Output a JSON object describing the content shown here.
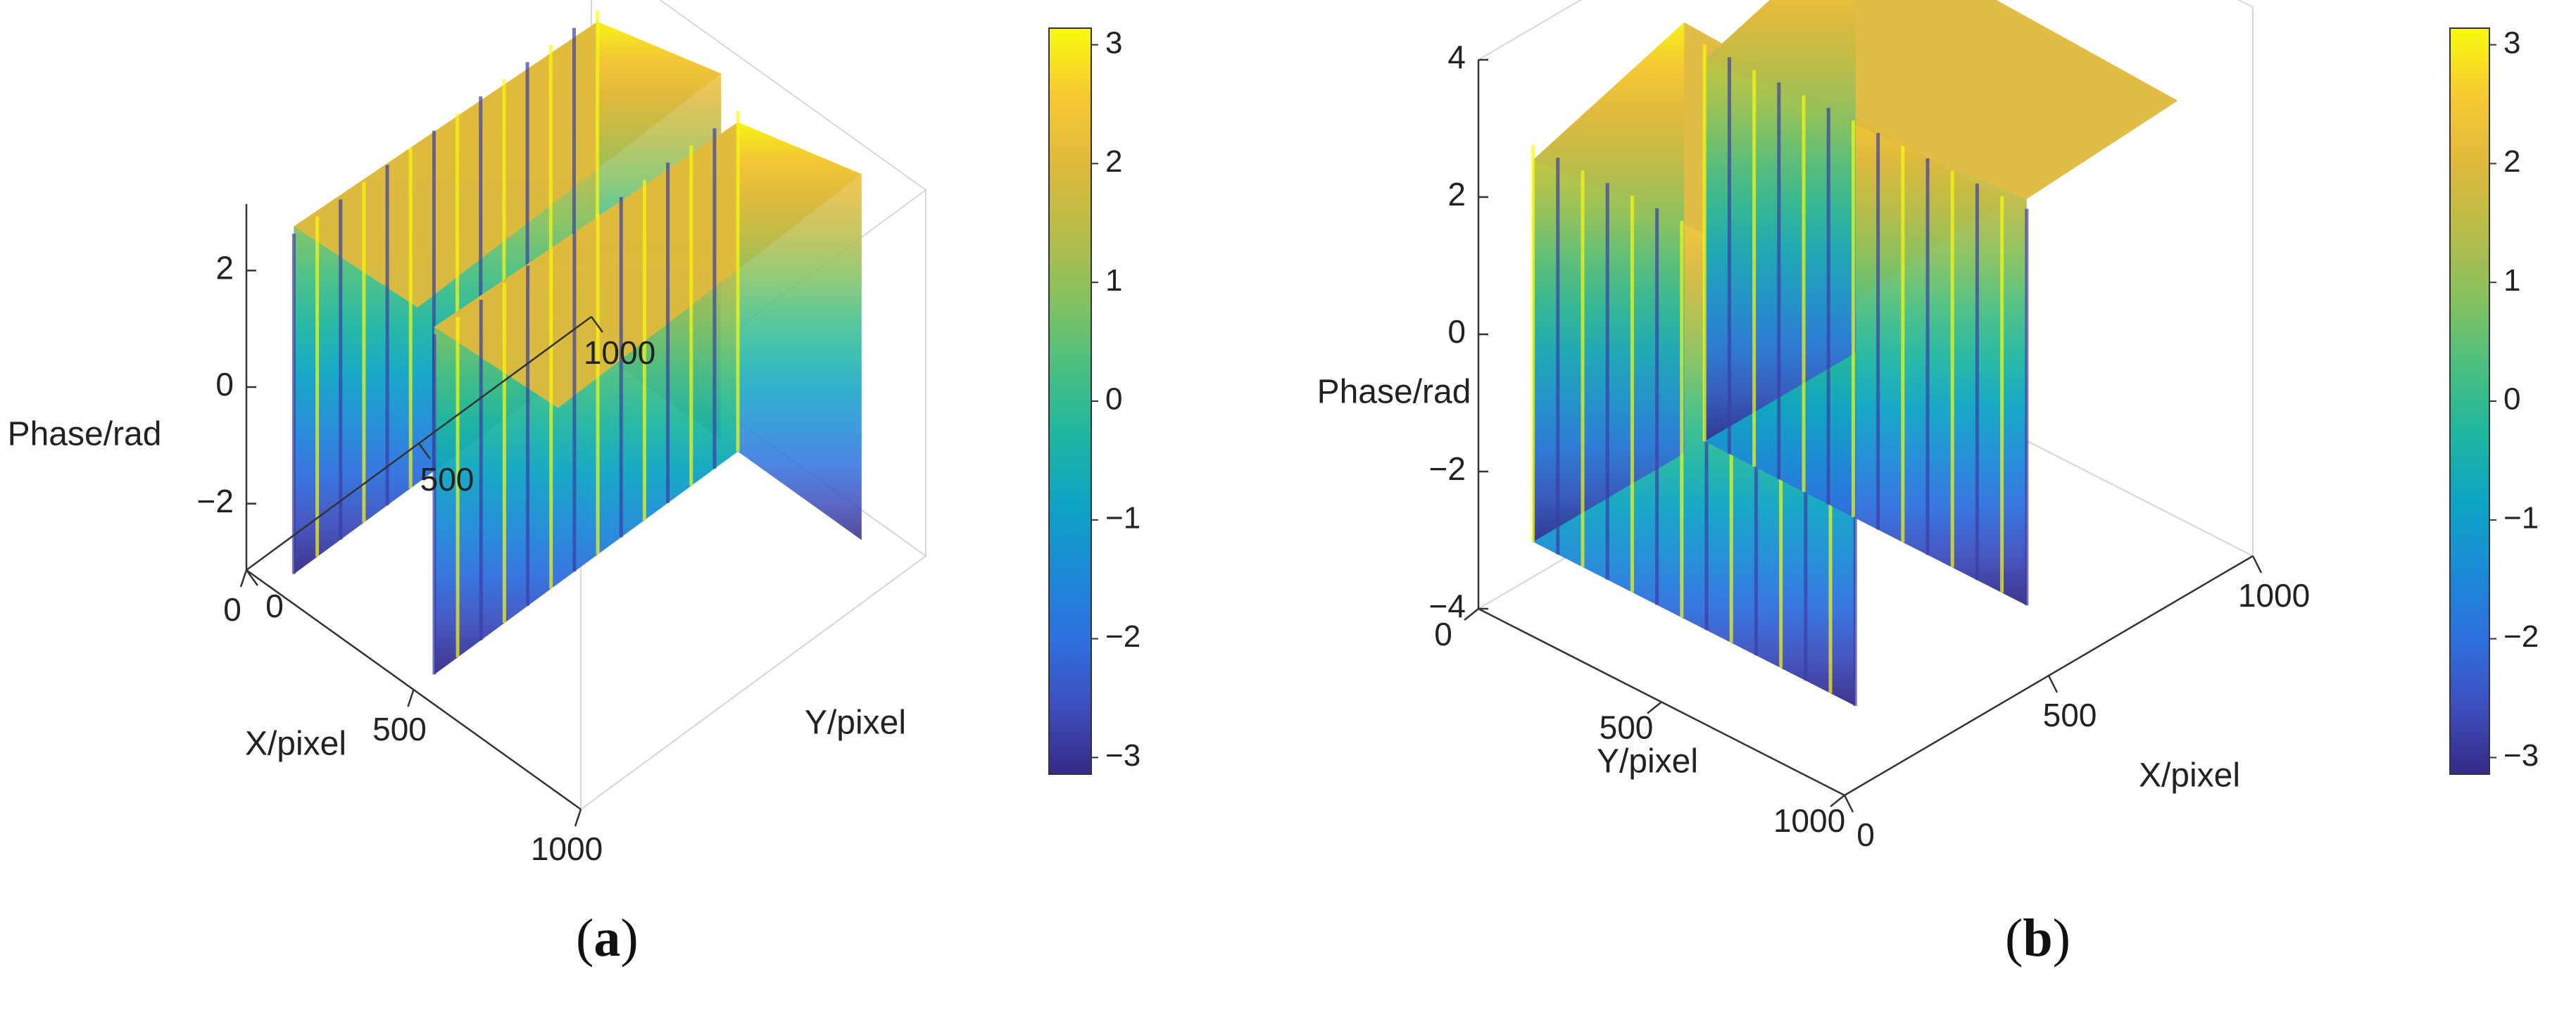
{
  "colors": {
    "parula": [
      "#352a87",
      "#3e4fbe",
      "#2e70df",
      "#1b8bd6",
      "#0da4c4",
      "#1fb6a0",
      "#4abf81",
      "#86c15f",
      "#b8bc49",
      "#dfb93c",
      "#f7c932",
      "#f9fb0e"
    ],
    "axis": "#333333",
    "grid": "#d8d8d8"
  },
  "chart_data": [
    {
      "panel": "a",
      "type": "surface3d",
      "caption_letter": "a",
      "xlabel": "X/pixel",
      "ylabel": "Y/pixel",
      "zlabel": "Phase/rad",
      "x_ticks": [
        "0",
        "500",
        "1000"
      ],
      "y_ticks": [
        "0",
        "500",
        "1000"
      ],
      "z_ticks": [
        "2",
        "0",
        "−2"
      ],
      "xlim": [
        0,
        1000
      ],
      "ylim": [
        0,
        1000
      ],
      "zlim": [
        -3.14,
        3.14
      ],
      "grid": true,
      "colorbar": {
        "ticks": [
          "3",
          "2",
          "1",
          "0",
          "−1",
          "−2",
          "−3"
        ],
        "range": [
          -3.14,
          3.14
        ]
      },
      "surface": {
        "wrapped_phase_bands": 2,
        "z_min": -3.14,
        "z_max": 3.14
      }
    },
    {
      "panel": "b",
      "type": "surface3d",
      "caption_letter": "b",
      "xlabel": "X/pixel",
      "ylabel": "Y/pixel",
      "zlabel": "Phase/rad",
      "x_ticks": [
        "0",
        "500",
        "1000"
      ],
      "y_ticks": [
        "1000",
        "500",
        "0"
      ],
      "z_ticks": [
        "4",
        "2",
        "0",
        "−2",
        "−4"
      ],
      "xlim": [
        0,
        1000
      ],
      "ylim": [
        0,
        1000
      ],
      "zlim": [
        -4,
        4
      ],
      "grid": true,
      "colorbar": {
        "ticks": [
          "3",
          "2",
          "1",
          "0",
          "−1",
          "−2",
          "−3"
        ],
        "range": [
          -3.14,
          3.14
        ]
      },
      "surface": {
        "wrapped_phase_bands": 2,
        "z_min": -3.14,
        "z_max": 3.14
      }
    }
  ]
}
